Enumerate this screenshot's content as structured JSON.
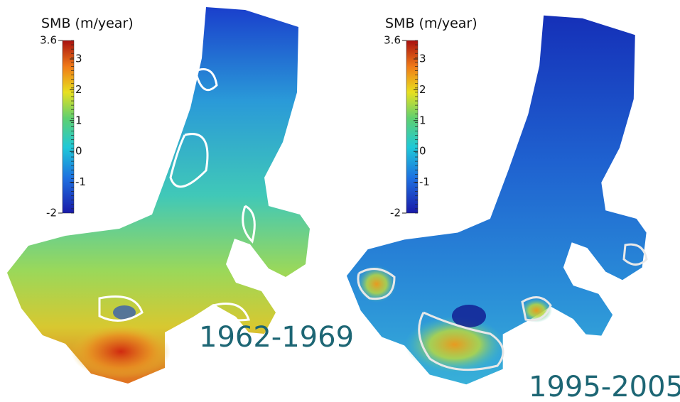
{
  "panels": [
    {
      "colorbar": {
        "title": "SMB (m/year)",
        "range": [
          -2,
          3.6
        ],
        "ticks": [
          3.6,
          3,
          2,
          1,
          0,
          -1,
          -2
        ]
      },
      "label": "1962-1969"
    },
    {
      "colorbar": {
        "title": "SMB (m/year)",
        "range": [
          -2,
          3.6
        ],
        "ticks": [
          3.6,
          3,
          2,
          1,
          0,
          -1,
          -2
        ]
      },
      "label": "1995-2005"
    }
  ]
}
